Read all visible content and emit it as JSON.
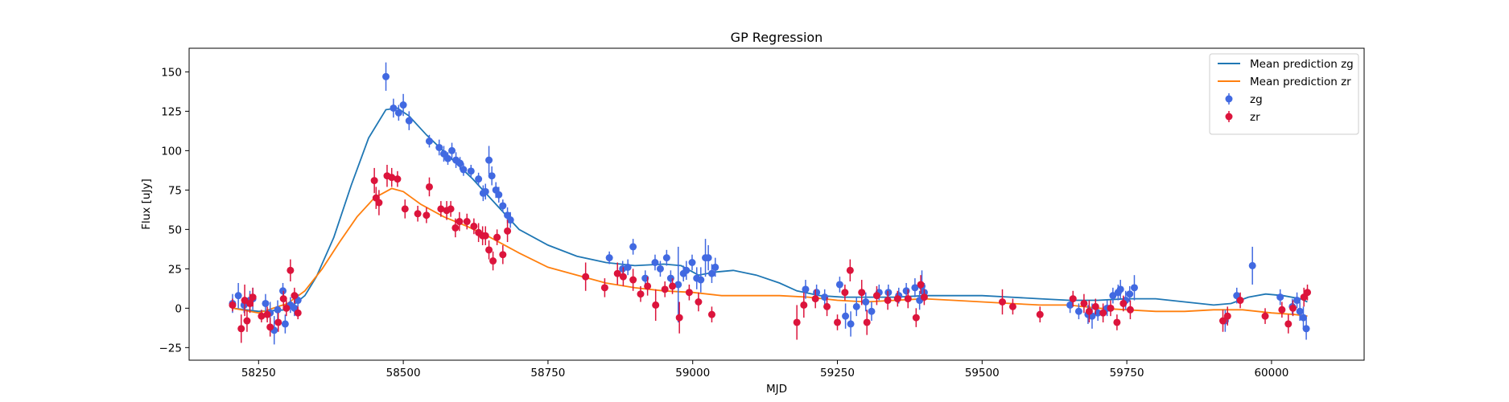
{
  "chart_data": {
    "type": "scatter",
    "title": "GP Regression",
    "xlabel": "MJD",
    "ylabel": "Flux [uJy]",
    "xlim": [
      58130,
      60160
    ],
    "ylim": [
      -33,
      165
    ],
    "xticks": [
      58250,
      58500,
      58750,
      59000,
      59250,
      59500,
      59750,
      60000
    ],
    "yticks": [
      -25,
      0,
      25,
      50,
      75,
      100,
      125,
      150
    ],
    "legend_position": "top-right",
    "grid": false,
    "series": [
      {
        "name": "zg",
        "kind": "errorbar",
        "color": "#4169e1",
        "points": [
          [
            58205,
            3,
            6
          ],
          [
            58215,
            8,
            8
          ],
          [
            58225,
            2,
            5
          ],
          [
            58235,
            5,
            6
          ],
          [
            58240,
            6,
            7
          ],
          [
            58262,
            3,
            6
          ],
          [
            58270,
            -3,
            7
          ],
          [
            58277,
            -14,
            9
          ],
          [
            58283,
            -1,
            6
          ],
          [
            58292,
            11,
            5
          ],
          [
            58296,
            -10,
            6
          ],
          [
            58305,
            2,
            5
          ],
          [
            58312,
            0,
            5
          ],
          [
            58318,
            5,
            4
          ],
          [
            58470,
            147,
            9
          ],
          [
            58483,
            127,
            6
          ],
          [
            58492,
            124,
            5
          ],
          [
            58500,
            129,
            7
          ],
          [
            58510,
            119,
            6
          ],
          [
            58545,
            106,
            4
          ],
          [
            58562,
            102,
            5
          ],
          [
            58570,
            98,
            5
          ],
          [
            58577,
            95,
            4
          ],
          [
            58584,
            100,
            5
          ],
          [
            58591,
            94,
            5
          ],
          [
            58598,
            92,
            4
          ],
          [
            58604,
            88,
            4
          ],
          [
            58617,
            87,
            4
          ],
          [
            58630,
            82,
            4
          ],
          [
            58638,
            73,
            5
          ],
          [
            58642,
            74,
            5
          ],
          [
            58648,
            94,
            9
          ],
          [
            58653,
            84,
            6
          ],
          [
            58660,
            75,
            5
          ],
          [
            58665,
            72,
            5
          ],
          [
            58672,
            65,
            4
          ],
          [
            58680,
            59,
            5
          ],
          [
            58685,
            56,
            5
          ],
          [
            58856,
            32,
            4
          ],
          [
            58879,
            25,
            5
          ],
          [
            58888,
            26,
            5
          ],
          [
            58897,
            39,
            5
          ],
          [
            58918,
            19,
            5
          ],
          [
            58935,
            29,
            5
          ],
          [
            58944,
            25,
            5
          ],
          [
            58955,
            32,
            5
          ],
          [
            58962,
            19,
            5
          ],
          [
            58975,
            15,
            24
          ],
          [
            58984,
            22,
            5
          ],
          [
            58989,
            24,
            6
          ],
          [
            58999,
            29,
            5
          ],
          [
            59007,
            19,
            7
          ],
          [
            59014,
            18,
            8
          ],
          [
            59022,
            32,
            12
          ],
          [
            59027,
            32,
            8
          ],
          [
            59033,
            22,
            6
          ],
          [
            59039,
            26,
            6
          ],
          [
            59195,
            12,
            6
          ],
          [
            59214,
            10,
            5
          ],
          [
            59228,
            7,
            5
          ],
          [
            59254,
            15,
            5
          ],
          [
            59264,
            -5,
            8
          ],
          [
            59273,
            -10,
            8
          ],
          [
            59283,
            1,
            6
          ],
          [
            59299,
            4,
            6
          ],
          [
            59309,
            -2,
            6
          ],
          [
            59322,
            10,
            5
          ],
          [
            59338,
            10,
            5
          ],
          [
            59356,
            8,
            5
          ],
          [
            59369,
            11,
            5
          ],
          [
            59384,
            13,
            6
          ],
          [
            59392,
            5,
            6
          ],
          [
            59396,
            14,
            10
          ],
          [
            59400,
            10,
            6
          ],
          [
            59652,
            2,
            5
          ],
          [
            59667,
            -2,
            5
          ],
          [
            59683,
            -4,
            6
          ],
          [
            59690,
            -5,
            8
          ],
          [
            59700,
            -3,
            5
          ],
          [
            59716,
            0,
            5
          ],
          [
            59726,
            8,
            5
          ],
          [
            59735,
            10,
            5
          ],
          [
            59739,
            12,
            6
          ],
          [
            59748,
            5,
            6
          ],
          [
            59755,
            9,
            5
          ],
          [
            59763,
            13,
            8
          ],
          [
            59920,
            -8,
            7
          ],
          [
            59940,
            8,
            5
          ],
          [
            59967,
            27,
            12
          ],
          [
            60015,
            7,
            5
          ],
          [
            60036,
            1,
            5
          ],
          [
            60044,
            5,
            5
          ],
          [
            60049,
            -2,
            6
          ],
          [
            60055,
            -6,
            7
          ],
          [
            60060,
            -13,
            7
          ]
        ]
      },
      {
        "name": "zr",
        "kind": "errorbar",
        "color": "#dc143c",
        "points": [
          [
            58205,
            2,
            4
          ],
          [
            58220,
            -13,
            9
          ],
          [
            58226,
            5,
            10
          ],
          [
            58230,
            -8,
            7
          ],
          [
            58235,
            3,
            6
          ],
          [
            58240,
            7,
            6
          ],
          [
            58255,
            -5,
            4
          ],
          [
            58265,
            -4,
            5
          ],
          [
            58270,
            -12,
            6
          ],
          [
            58284,
            -9,
            6
          ],
          [
            58293,
            6,
            5
          ],
          [
            58298,
            0,
            5
          ],
          [
            58305,
            24,
            7
          ],
          [
            58312,
            8,
            5
          ],
          [
            58318,
            -3,
            4
          ],
          [
            58450,
            81,
            8
          ],
          [
            58453,
            70,
            7
          ],
          [
            58458,
            67,
            8
          ],
          [
            58472,
            84,
            7
          ],
          [
            58480,
            83,
            6
          ],
          [
            58490,
            82,
            5
          ],
          [
            58503,
            63,
            6
          ],
          [
            58525,
            60,
            5
          ],
          [
            58540,
            59,
            5
          ],
          [
            58545,
            77,
            6
          ],
          [
            58565,
            63,
            5
          ],
          [
            58575,
            62,
            6
          ],
          [
            58582,
            63,
            5
          ],
          [
            58590,
            51,
            6
          ],
          [
            58597,
            55,
            6
          ],
          [
            58610,
            55,
            5
          ],
          [
            58622,
            52,
            5
          ],
          [
            58630,
            48,
            6
          ],
          [
            58637,
            46,
            6
          ],
          [
            58642,
            46,
            6
          ],
          [
            58648,
            37,
            6
          ],
          [
            58655,
            30,
            6
          ],
          [
            58662,
            45,
            5
          ],
          [
            58672,
            34,
            6
          ],
          [
            58680,
            49,
            7
          ],
          [
            58815,
            20,
            9
          ],
          [
            58848,
            13,
            6
          ],
          [
            58870,
            22,
            7
          ],
          [
            58880,
            20,
            6
          ],
          [
            58897,
            18,
            7
          ],
          [
            58910,
            9,
            5
          ],
          [
            58922,
            14,
            6
          ],
          [
            58936,
            2,
            10
          ],
          [
            58952,
            12,
            5
          ],
          [
            58965,
            14,
            5
          ],
          [
            58977,
            -6,
            10
          ],
          [
            58994,
            10,
            5
          ],
          [
            59010,
            4,
            6
          ],
          [
            59033,
            -4,
            5
          ],
          [
            59180,
            -9,
            11
          ],
          [
            59192,
            2,
            8
          ],
          [
            59212,
            6,
            6
          ],
          [
            59232,
            1,
            6
          ],
          [
            59250,
            -9,
            5
          ],
          [
            59263,
            10,
            5
          ],
          [
            59272,
            24,
            7
          ],
          [
            59292,
            10,
            8
          ],
          [
            59301,
            -9,
            8
          ],
          [
            59318,
            8,
            6
          ],
          [
            59337,
            5,
            6
          ],
          [
            59354,
            6,
            5
          ],
          [
            59372,
            6,
            6
          ],
          [
            59386,
            -6,
            6
          ],
          [
            59394,
            15,
            6
          ],
          [
            59400,
            7,
            5
          ],
          [
            59535,
            4,
            8
          ],
          [
            59553,
            1,
            5
          ],
          [
            59600,
            -4,
            5
          ],
          [
            59657,
            6,
            5
          ],
          [
            59676,
            3,
            6
          ],
          [
            59685,
            -2,
            7
          ],
          [
            59696,
            1,
            5
          ],
          [
            59709,
            -3,
            6
          ],
          [
            59722,
            0,
            5
          ],
          [
            59733,
            -9,
            5
          ],
          [
            59744,
            3,
            5
          ],
          [
            59756,
            -1,
            6
          ],
          [
            59916,
            -8,
            7
          ],
          [
            59924,
            -5,
            6
          ],
          [
            59946,
            5,
            5
          ],
          [
            59989,
            -5,
            5
          ],
          [
            60018,
            -1,
            5
          ],
          [
            60029,
            -10,
            6
          ],
          [
            60037,
            0,
            5
          ],
          [
            60056,
            7,
            6
          ],
          [
            60062,
            10,
            5
          ]
        ]
      },
      {
        "name": "Mean prediction zg",
        "kind": "line",
        "color": "#1f77b4",
        "x": [
          58205,
          58250,
          58300,
          58330,
          58350,
          58380,
          58410,
          58440,
          58470,
          58490,
          58510,
          58540,
          58580,
          58620,
          58660,
          58700,
          58750,
          58800,
          58850,
          58900,
          58950,
          58980,
          59010,
          59040,
          59070,
          59110,
          59150,
          59180,
          59220,
          59260,
          59300,
          59350,
          59400,
          59450,
          59500,
          59550,
          59600,
          59650,
          59700,
          59750,
          59800,
          59850,
          59900,
          59930,
          59960,
          59990,
          60020,
          60050,
          60062
        ],
        "y": [
          0,
          -2,
          -1,
          8,
          20,
          45,
          78,
          108,
          126,
          127,
          122,
          110,
          96,
          82,
          66,
          50,
          40,
          33,
          29,
          27,
          28,
          27,
          21,
          23,
          24,
          21,
          16,
          11,
          8,
          7,
          7,
          7,
          8,
          8,
          8,
          7,
          6,
          5,
          5,
          6,
          6,
          4,
          2,
          3,
          7,
          9,
          8,
          6,
          4
        ]
      },
      {
        "name": "Mean prediction zr",
        "kind": "line",
        "color": "#ff7f0e",
        "x": [
          58205,
          58250,
          58300,
          58330,
          58360,
          58390,
          58420,
          58450,
          58480,
          58500,
          58530,
          58570,
          58610,
          58650,
          58700,
          58750,
          58800,
          58850,
          58900,
          58950,
          59000,
          59050,
          59100,
          59150,
          59200,
          59250,
          59300,
          59350,
          59400,
          59450,
          59500,
          59550,
          59600,
          59650,
          59700,
          59750,
          59800,
          59850,
          59900,
          59950,
          60000,
          60040,
          60062
        ],
        "y": [
          0,
          -3,
          3,
          11,
          25,
          42,
          58,
          70,
          76,
          74,
          66,
          58,
          52,
          45,
          35,
          26,
          21,
          16,
          13,
          11,
          10,
          8,
          8,
          8,
          7,
          5,
          4,
          5,
          6,
          5,
          4,
          3,
          2,
          2,
          0,
          -1,
          -2,
          -2,
          -1,
          -1,
          -3,
          -4,
          -5
        ]
      }
    ]
  }
}
